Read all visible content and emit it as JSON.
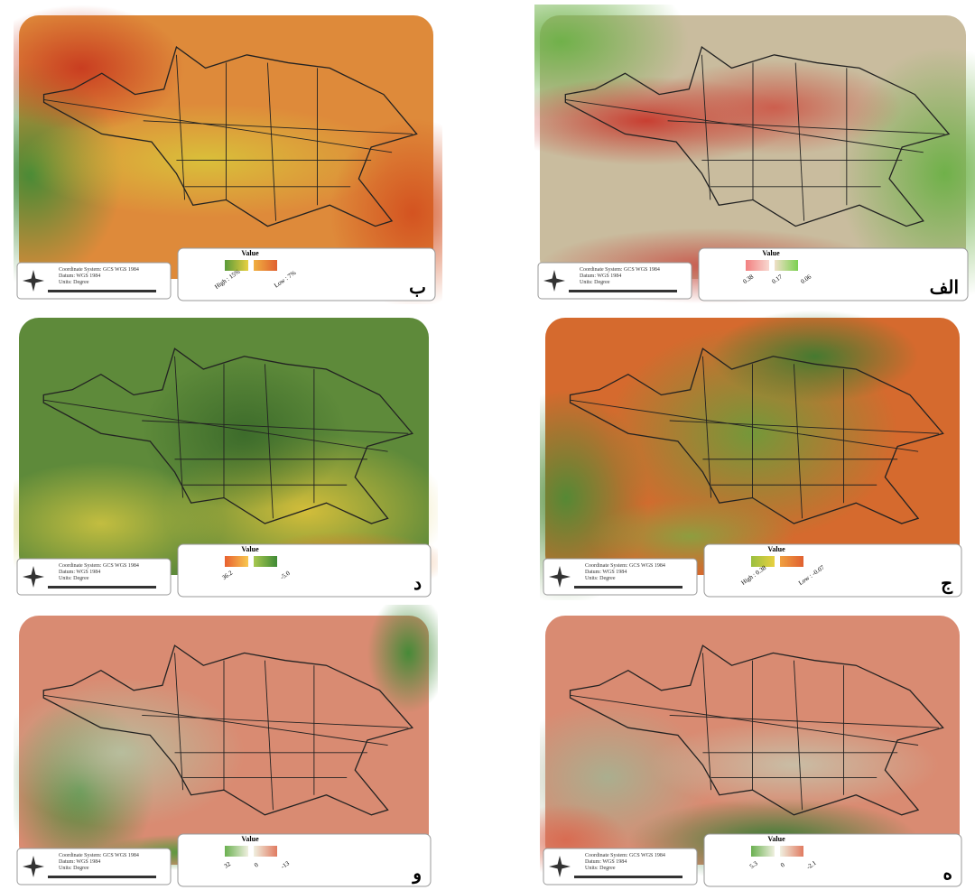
{
  "panels": [
    {
      "letter": "ب",
      "legend_title": "Value",
      "legend_labels": [
        "High : 15%",
        "Low : 7%"
      ],
      "coordinate_system": "Coordinate System: GCS WGS 1984",
      "datum": "Datum: WGS 1984",
      "units": "Units: Degree"
    },
    {
      "letter": "الف",
      "legend_title": "Value",
      "legend_labels": [
        "0.38",
        "0.17",
        "0.06"
      ],
      "coordinate_system": "Coordinate System: GCS WGS 1984",
      "datum": "Datum: WGS 1984",
      "units": "Units: Degree"
    },
    {
      "letter": "د",
      "legend_title": "Value",
      "legend_labels": [
        "36.2",
        "-5.0"
      ],
      "coordinate_system": "Coordinate System: GCS WGS 1984",
      "datum": "Datum: WGS 1984",
      "units": "Units: Degree"
    },
    {
      "letter": "ج",
      "legend_title": "Value",
      "legend_labels": [
        "High : 0.38",
        "Low : -0.07"
      ],
      "coordinate_system": "Coordinate System: GCS WGS 1984",
      "datum": "Datum: WGS 1984",
      "units": "Units: Degree"
    },
    {
      "letter": "و",
      "legend_title": "Value",
      "legend_labels": [
        "32",
        "0",
        "-13"
      ],
      "coordinate_system": "Coordinate System: GCS WGS 1984",
      "datum": "Datum: WGS 1984",
      "units": "Units: Degree"
    },
    {
      "letter": "ه",
      "legend_title": "Value",
      "legend_labels": [
        "5.3",
        "0",
        "-2.1"
      ],
      "coordinate_system": "Coordinate System: GCS WGS 1984",
      "datum": "Datum: WGS 1984",
      "units": "Units: Degree"
    }
  ]
}
